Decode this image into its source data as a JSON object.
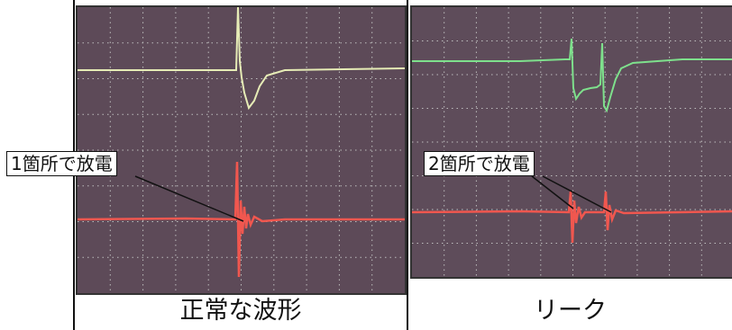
{
  "panels": [
    {
      "caption": "正常な波形",
      "annotation": "1箇所で放電",
      "colors": {
        "screen": "#5d4a58",
        "upper_trace": "#e6ecb6",
        "lower_trace": "#f0574f"
      }
    },
    {
      "caption": "リーク",
      "annotation": "2箇所で放電",
      "colors": {
        "screen": "#5e4c5a",
        "upper_trace": "#7ee08c",
        "lower_trace": "#f0574f"
      }
    }
  ]
}
